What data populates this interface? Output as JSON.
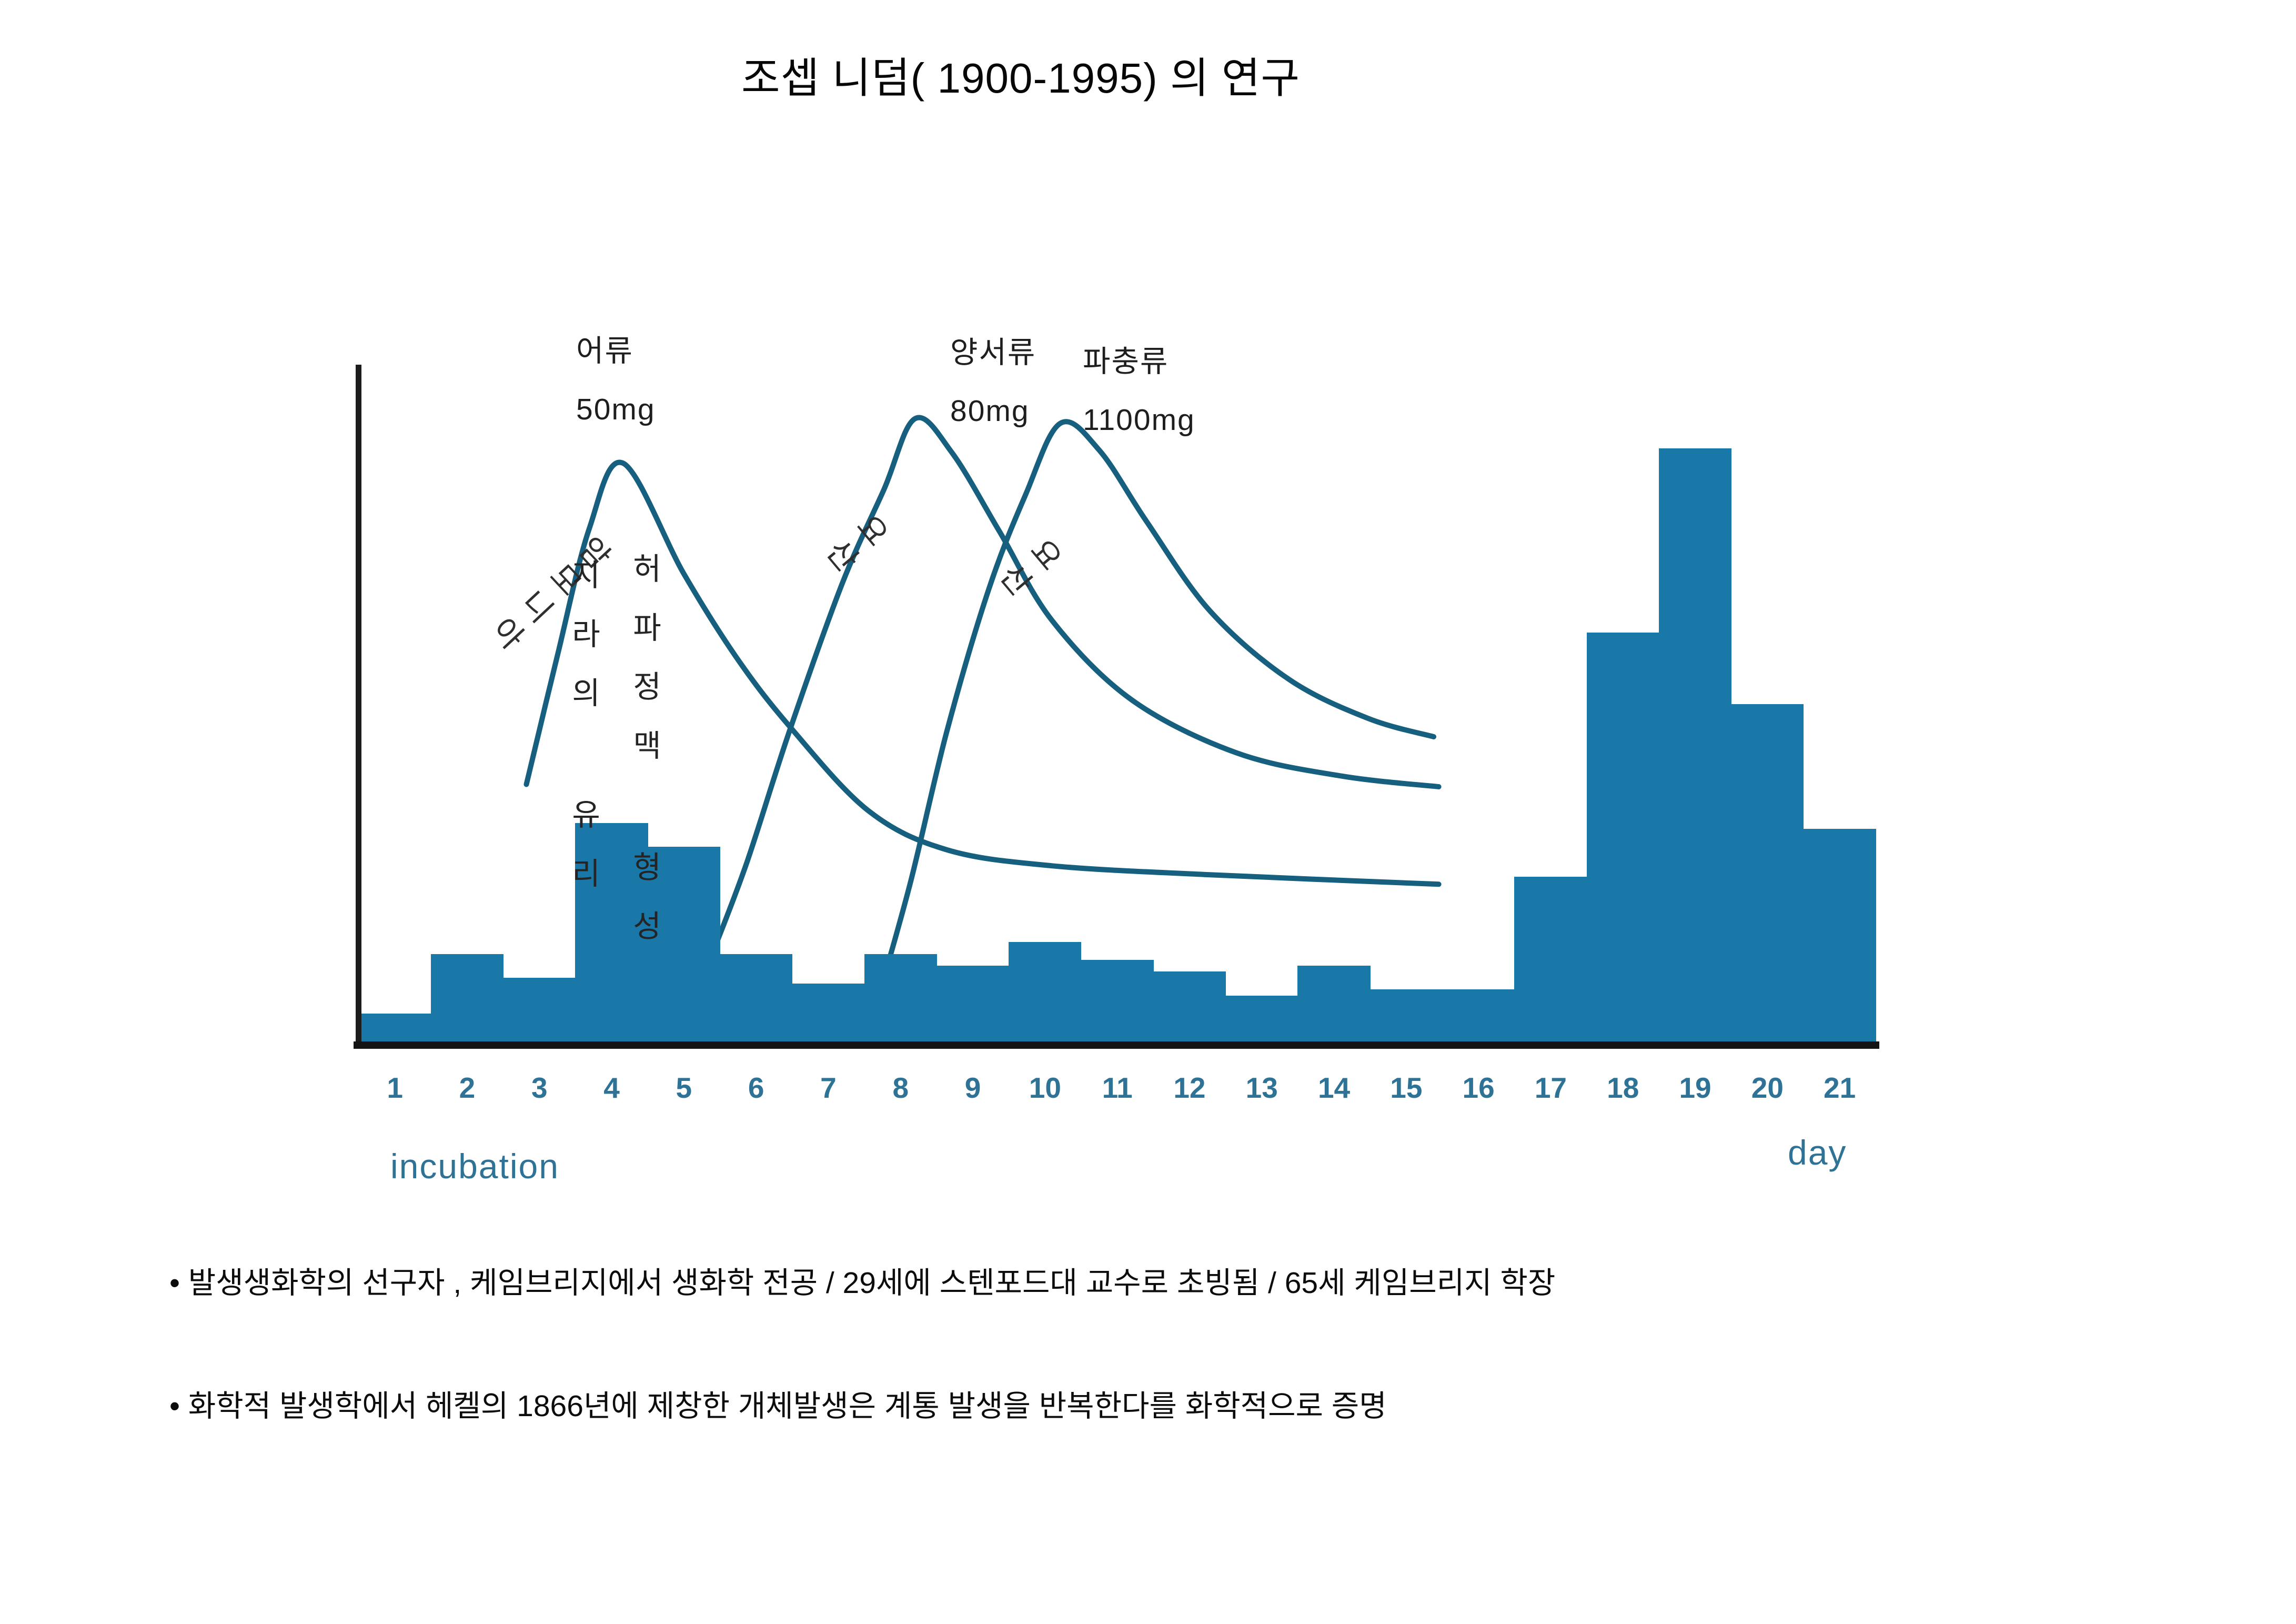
{
  "slide": {
    "title": "조셉 니덤( 1900-1995) 의 연구",
    "bullets": [
      "• 발생생화학의 선구자 , 케임브리지에서 생화학 전공  /   29세에 스텐포드대 교수로 초빙됨 / 65세 케임브리지 학장",
      "• 화학적 발생학에서 헤켈의 1866년에 제창한 개체발생은 계통 발생을 반복한다를 화학적으로 증명"
    ]
  },
  "chart_data": {
    "type": "bar+line",
    "title": "",
    "xlabel_left": "incubation",
    "xlabel_right": "day",
    "x_ticks": [
      "1",
      "2",
      "3",
      "4",
      "5",
      "6",
      "7",
      "8",
      "9",
      "10",
      "11",
      "12",
      "13",
      "14",
      "15",
      "16",
      "17",
      "18",
      "19",
      "20",
      "21"
    ],
    "bars": {
      "description": "daily bars, height as % of tallest bar (day 19)",
      "values_pct_of_max": [
        5,
        15,
        11,
        37,
        33,
        15,
        10,
        15,
        13,
        17,
        14,
        12,
        8,
        13,
        9,
        9,
        28,
        69,
        100,
        57,
        36
      ]
    },
    "curves": [
      {
        "rotated_label": "암모니아",
        "animal_label": "어류",
        "peak_amount": "50mg",
        "peak_day": 4,
        "points_day_pct": [
          [
            2.32,
            43.5
          ],
          [
            2.75,
            65.2
          ],
          [
            3.19,
            86.5
          ],
          [
            3.66,
            97.5
          ],
          [
            4.5,
            78.9
          ],
          [
            5.23,
            64.8
          ],
          [
            5.96,
            53.3
          ],
          [
            7.05,
            39.1
          ],
          [
            8.14,
            32.5
          ],
          [
            9.6,
            29.8
          ],
          [
            11.78,
            28.3
          ],
          [
            14.95,
            26.7
          ]
        ]
      },
      {
        "rotated_label": "요산",
        "animal_label": "양서류",
        "peak_amount": "80mg",
        "peak_day": 8,
        "points_day_pct": [
          [
            4.9,
            15.2
          ],
          [
            5.37,
            30.3
          ],
          [
            5.96,
            52.4
          ],
          [
            6.69,
            77.2
          ],
          [
            7.27,
            93.1
          ],
          [
            7.7,
            105.0
          ],
          [
            8.21,
            99.3
          ],
          [
            8.87,
            86.0
          ],
          [
            9.6,
            71.0
          ],
          [
            10.7,
            57.7
          ],
          [
            12.15,
            48.8
          ],
          [
            13.6,
            44.9
          ],
          [
            14.95,
            43.1
          ]
        ]
      },
      {
        "rotated_label": "요산",
        "animal_label": "파충류",
        "peak_amount": "1100mg",
        "peak_day": 10,
        "points_day_pct": [
          [
            7.12,
            4.6
          ],
          [
            7.63,
            26.7
          ],
          [
            8.14,
            52.4
          ],
          [
            8.72,
            76.3
          ],
          [
            9.23,
            92.2
          ],
          [
            9.71,
            104.2
          ],
          [
            10.25,
            99.7
          ],
          [
            10.9,
            87.8
          ],
          [
            11.78,
            72.7
          ],
          [
            12.87,
            61.2
          ],
          [
            13.97,
            54.6
          ],
          [
            14.88,
            51.5
          ]
        ]
      }
    ],
    "annotations": {
      "spleen_note": "지라의 유리",
      "lung_vein_note": "허파정맥 형성",
      "arrow_points_to_day": 4
    },
    "axis_ranges": {
      "x_days": [
        1,
        21
      ],
      "y_pct": [
        0,
        110
      ]
    },
    "grid": false,
    "legend_position": "none",
    "colors": {
      "bar_fill": "#1a78a8",
      "curve_stroke": "#165f7e",
      "axis_line": "#1c1c1c",
      "tick_text": "#2e7296",
      "annotation_text": "#242424",
      "arrow": "#2879a4"
    }
  }
}
